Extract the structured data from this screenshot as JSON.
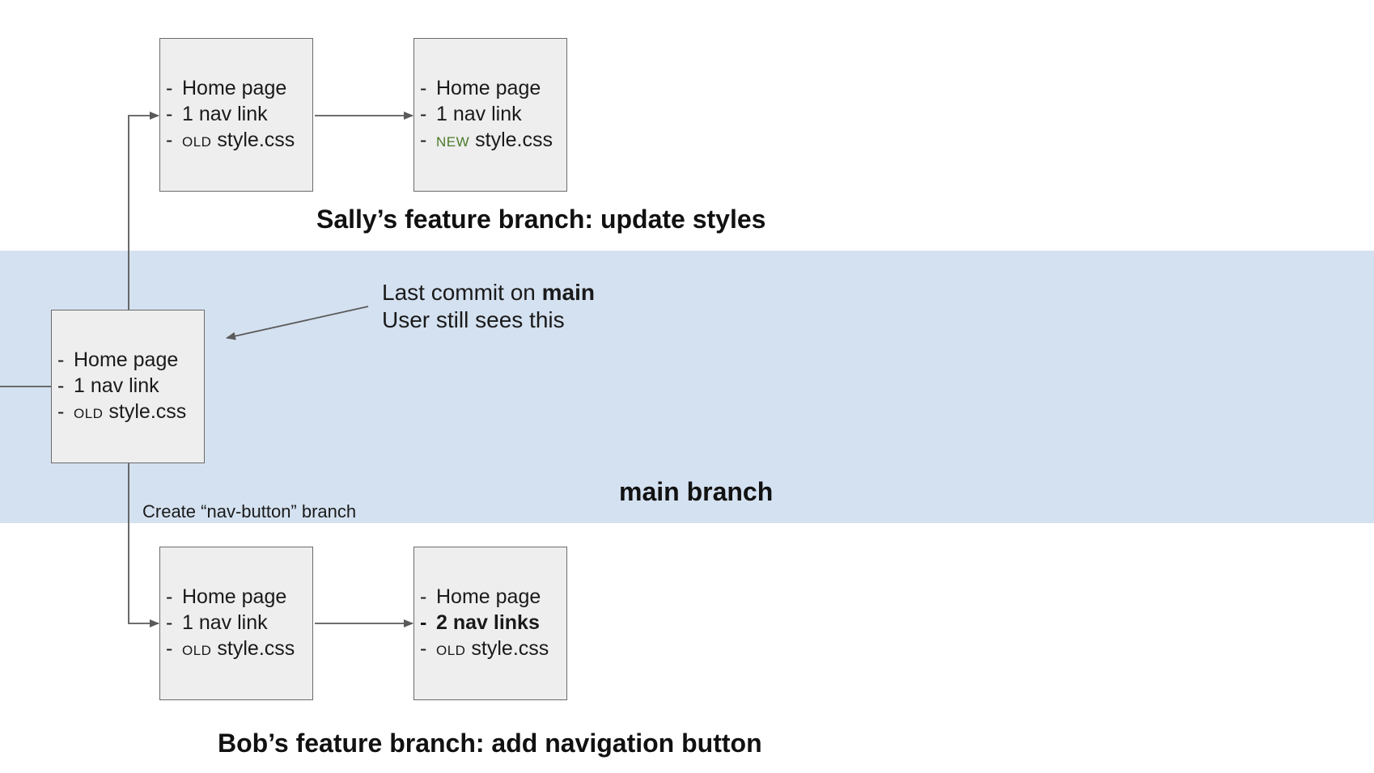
{
  "bands": {
    "main_label": "main branch"
  },
  "commits": {
    "main": {
      "lines": [
        "Home page",
        "1 nav link"
      ],
      "css_tag": "OLD",
      "css_file": "style.css"
    },
    "sally_1": {
      "lines": [
        "Home page",
        "1 nav link"
      ],
      "css_tag": "OLD",
      "css_file": "style.css"
    },
    "sally_2": {
      "lines": [
        "Home page",
        "1 nav link"
      ],
      "css_tag": "NEW",
      "css_file": "style.css"
    },
    "bob_1": {
      "lines": [
        "Home page",
        "1 nav link"
      ],
      "css_tag": "OLD",
      "css_file": "style.css"
    },
    "bob_2": {
      "lines": [
        "Home page",
        "2 nav links"
      ],
      "css_tag": "OLD",
      "css_file": "style.css"
    }
  },
  "labels": {
    "sally_branch": "Sally’s feature branch: update styles",
    "bob_branch": "Bob’s feature branch: add navigation button",
    "create_branch": "Create “nav-button” branch"
  },
  "annotation": {
    "line1_prefix": "Last commit on ",
    "line1_bold": "main",
    "line2": "User still sees this"
  },
  "colors": {
    "main_band": "#d4e1f0",
    "commit_fill": "#eeeeee",
    "new_tag": "#4a7a2a"
  }
}
